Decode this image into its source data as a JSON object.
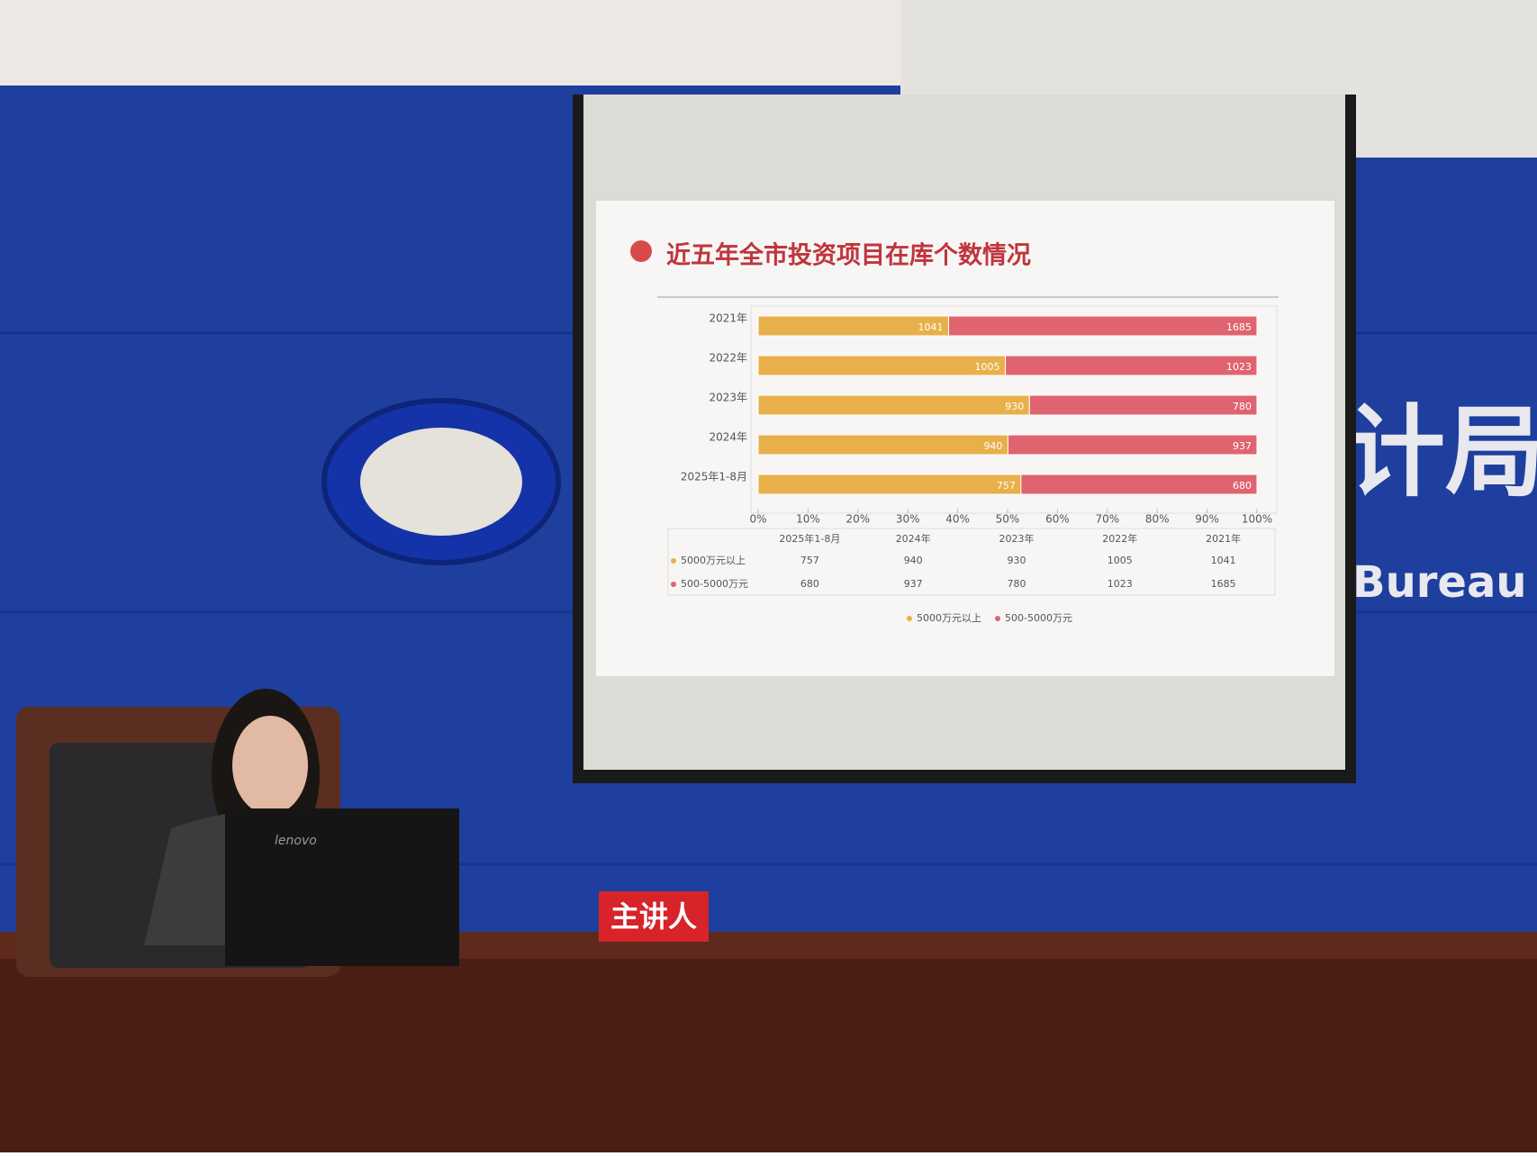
{
  "chart_data": {
    "type": "stacked_bar_100",
    "title": "近五年全市投资项目在库个数情况",
    "categories": [
      "2021年",
      "2022年",
      "2023年",
      "2024年",
      "2025年1-8月"
    ],
    "series": [
      {
        "name": "5000万元以上",
        "color": "#e8b04a",
        "values": [
          1041,
          1005,
          930,
          940,
          757
        ]
      },
      {
        "name": "500-5000万元",
        "color": "#e06470",
        "values": [
          1685,
          1023,
          780,
          937,
          680
        ]
      }
    ],
    "xlim": [
      0,
      100
    ],
    "xticks": [
      {
        "value": 0,
        "label": "0%"
      },
      {
        "value": 10,
        "label": "10%"
      },
      {
        "value": 20,
        "label": "20%"
      },
      {
        "value": 30,
        "label": "30%"
      },
      {
        "value": 40,
        "label": "40%"
      },
      {
        "value": 50,
        "label": "50%"
      },
      {
        "value": 60,
        "label": "60%"
      },
      {
        "value": 70,
        "label": "70%"
      },
      {
        "value": 80,
        "label": "80%"
      },
      {
        "value": 90,
        "label": "90%"
      },
      {
        "value": 100,
        "label": "100%"
      }
    ]
  },
  "scene": {
    "nameplate": "主讲人",
    "wall_text_cn": "计局",
    "wall_text_en": "Bureau",
    "laptop_brand": "lenovo"
  }
}
